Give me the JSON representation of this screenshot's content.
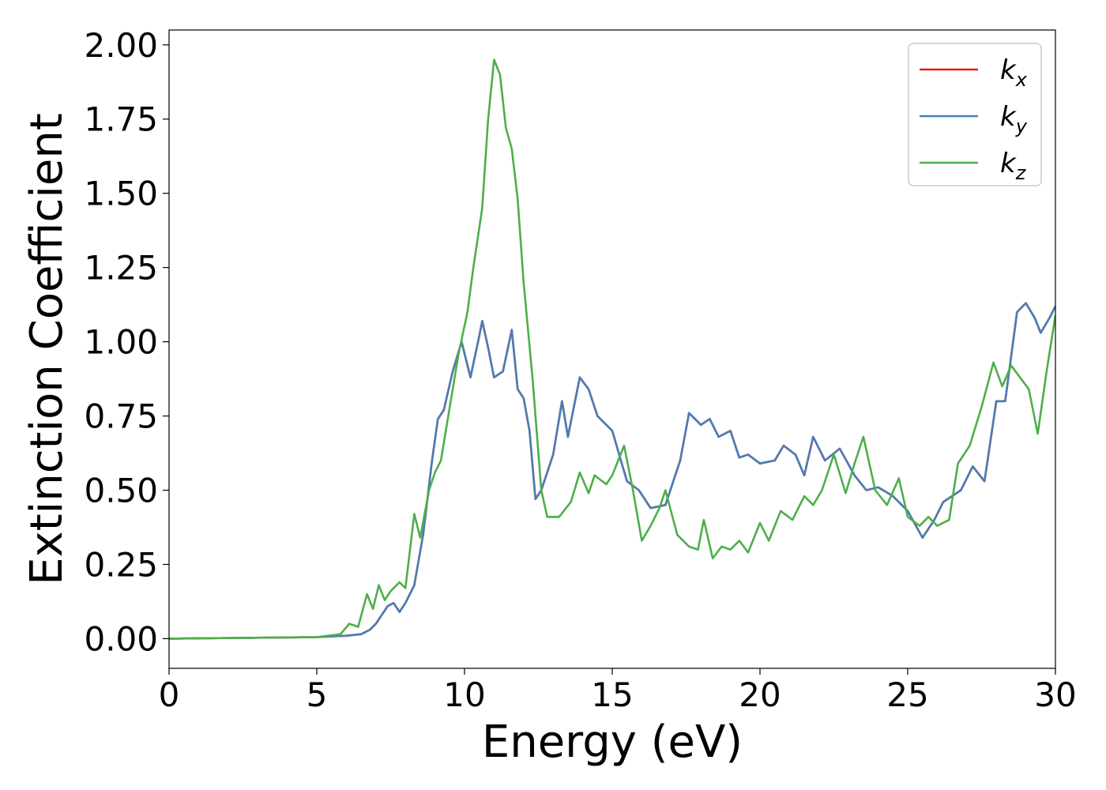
{
  "chart_data": {
    "type": "line",
    "title": "",
    "xlabel": "Energy (eV)",
    "ylabel": "Extinction Coefficient",
    "xlim": [
      0,
      30
    ],
    "ylim": [
      -0.1,
      2.05
    ],
    "xticks": [
      0,
      5,
      10,
      15,
      20,
      25,
      30
    ],
    "xtick_labels": [
      "0",
      "5",
      "10",
      "15",
      "20",
      "25",
      "30"
    ],
    "yticks": [
      0.0,
      0.25,
      0.5,
      0.75,
      1.0,
      1.25,
      1.5,
      1.75,
      2.0
    ],
    "ytick_labels": [
      "0.00",
      "0.25",
      "0.50",
      "0.75",
      "1.00",
      "1.25",
      "1.50",
      "1.75",
      "2.00"
    ],
    "grid": false,
    "legend_position": "top-right",
    "series": [
      {
        "name": "k_x",
        "label_base": "k",
        "label_sub": "x",
        "color": "#e41a1c",
        "points": [
          [
            0,
            0.0
          ],
          [
            5,
            0.005
          ],
          [
            6,
            0.01
          ],
          [
            6.5,
            0.015
          ],
          [
            6.8,
            0.03
          ],
          [
            7.0,
            0.05
          ],
          [
            7.2,
            0.08
          ],
          [
            7.4,
            0.11
          ],
          [
            7.6,
            0.12
          ],
          [
            7.8,
            0.09
          ],
          [
            8.0,
            0.12
          ],
          [
            8.3,
            0.18
          ],
          [
            8.6,
            0.35
          ],
          [
            8.9,
            0.6
          ],
          [
            9.1,
            0.74
          ],
          [
            9.3,
            0.77
          ],
          [
            9.6,
            0.9
          ],
          [
            9.9,
            1.0
          ],
          [
            10.2,
            0.88
          ],
          [
            10.5,
            1.02
          ],
          [
            10.6,
            1.07
          ],
          [
            10.8,
            0.98
          ],
          [
            11.0,
            0.88
          ],
          [
            11.3,
            0.9
          ],
          [
            11.6,
            1.04
          ],
          [
            11.8,
            0.84
          ],
          [
            12.0,
            0.81
          ],
          [
            12.2,
            0.7
          ],
          [
            12.4,
            0.47
          ],
          [
            12.6,
            0.5
          ],
          [
            13.0,
            0.62
          ],
          [
            13.3,
            0.8
          ],
          [
            13.5,
            0.68
          ],
          [
            13.7,
            0.78
          ],
          [
            13.9,
            0.88
          ],
          [
            14.2,
            0.84
          ],
          [
            14.5,
            0.75
          ],
          [
            15.0,
            0.7
          ],
          [
            15.5,
            0.53
          ],
          [
            15.9,
            0.5
          ],
          [
            16.3,
            0.44
          ],
          [
            16.8,
            0.45
          ],
          [
            17.3,
            0.6
          ],
          [
            17.6,
            0.76
          ],
          [
            18.0,
            0.72
          ],
          [
            18.3,
            0.74
          ],
          [
            18.6,
            0.68
          ],
          [
            19.0,
            0.7
          ],
          [
            19.3,
            0.61
          ],
          [
            19.6,
            0.62
          ],
          [
            20.0,
            0.59
          ],
          [
            20.5,
            0.6
          ],
          [
            20.8,
            0.65
          ],
          [
            21.2,
            0.62
          ],
          [
            21.5,
            0.55
          ],
          [
            21.8,
            0.68
          ],
          [
            22.2,
            0.6
          ],
          [
            22.7,
            0.64
          ],
          [
            23.2,
            0.55
          ],
          [
            23.6,
            0.5
          ],
          [
            24.0,
            0.51
          ],
          [
            24.5,
            0.48
          ],
          [
            25.0,
            0.43
          ],
          [
            25.5,
            0.34
          ],
          [
            25.9,
            0.4
          ],
          [
            26.2,
            0.46
          ],
          [
            26.8,
            0.5
          ],
          [
            27.2,
            0.58
          ],
          [
            27.6,
            0.53
          ],
          [
            28.0,
            0.8
          ],
          [
            28.3,
            0.8
          ],
          [
            28.7,
            1.1
          ],
          [
            29.0,
            1.13
          ],
          [
            29.3,
            1.08
          ],
          [
            29.5,
            1.03
          ],
          [
            29.8,
            1.08
          ],
          [
            30.0,
            1.12
          ]
        ]
      },
      {
        "name": "k_y",
        "label_base": "k",
        "label_sub": "y",
        "color": "#4a7db5",
        "points": [
          [
            0,
            0.0
          ],
          [
            5,
            0.005
          ],
          [
            6,
            0.01
          ],
          [
            6.5,
            0.015
          ],
          [
            6.8,
            0.03
          ],
          [
            7.0,
            0.05
          ],
          [
            7.2,
            0.08
          ],
          [
            7.4,
            0.11
          ],
          [
            7.6,
            0.12
          ],
          [
            7.8,
            0.09
          ],
          [
            8.0,
            0.12
          ],
          [
            8.3,
            0.18
          ],
          [
            8.6,
            0.35
          ],
          [
            8.9,
            0.6
          ],
          [
            9.1,
            0.74
          ],
          [
            9.3,
            0.77
          ],
          [
            9.6,
            0.9
          ],
          [
            9.9,
            1.0
          ],
          [
            10.2,
            0.88
          ],
          [
            10.5,
            1.02
          ],
          [
            10.6,
            1.07
          ],
          [
            10.8,
            0.98
          ],
          [
            11.0,
            0.88
          ],
          [
            11.3,
            0.9
          ],
          [
            11.6,
            1.04
          ],
          [
            11.8,
            0.84
          ],
          [
            12.0,
            0.81
          ],
          [
            12.2,
            0.7
          ],
          [
            12.4,
            0.47
          ],
          [
            12.6,
            0.5
          ],
          [
            13.0,
            0.62
          ],
          [
            13.3,
            0.8
          ],
          [
            13.5,
            0.68
          ],
          [
            13.7,
            0.78
          ],
          [
            13.9,
            0.88
          ],
          [
            14.2,
            0.84
          ],
          [
            14.5,
            0.75
          ],
          [
            15.0,
            0.7
          ],
          [
            15.5,
            0.53
          ],
          [
            15.9,
            0.5
          ],
          [
            16.3,
            0.44
          ],
          [
            16.8,
            0.45
          ],
          [
            17.3,
            0.6
          ],
          [
            17.6,
            0.76
          ],
          [
            18.0,
            0.72
          ],
          [
            18.3,
            0.74
          ],
          [
            18.6,
            0.68
          ],
          [
            19.0,
            0.7
          ],
          [
            19.3,
            0.61
          ],
          [
            19.6,
            0.62
          ],
          [
            20.0,
            0.59
          ],
          [
            20.5,
            0.6
          ],
          [
            20.8,
            0.65
          ],
          [
            21.2,
            0.62
          ],
          [
            21.5,
            0.55
          ],
          [
            21.8,
            0.68
          ],
          [
            22.2,
            0.6
          ],
          [
            22.7,
            0.64
          ],
          [
            23.2,
            0.55
          ],
          [
            23.6,
            0.5
          ],
          [
            24.0,
            0.51
          ],
          [
            24.5,
            0.48
          ],
          [
            25.0,
            0.43
          ],
          [
            25.5,
            0.34
          ],
          [
            25.9,
            0.4
          ],
          [
            26.2,
            0.46
          ],
          [
            26.8,
            0.5
          ],
          [
            27.2,
            0.58
          ],
          [
            27.6,
            0.53
          ],
          [
            28.0,
            0.8
          ],
          [
            28.3,
            0.8
          ],
          [
            28.7,
            1.1
          ],
          [
            29.0,
            1.13
          ],
          [
            29.3,
            1.08
          ],
          [
            29.5,
            1.03
          ],
          [
            29.8,
            1.08
          ],
          [
            30.0,
            1.12
          ]
        ]
      },
      {
        "name": "k_z",
        "label_base": "k",
        "label_sub": "z",
        "color": "#4daf4a",
        "points": [
          [
            0,
            0.0
          ],
          [
            5,
            0.005
          ],
          [
            5.8,
            0.015
          ],
          [
            6.1,
            0.05
          ],
          [
            6.4,
            0.04
          ],
          [
            6.7,
            0.15
          ],
          [
            6.9,
            0.1
          ],
          [
            7.1,
            0.18
          ],
          [
            7.3,
            0.13
          ],
          [
            7.5,
            0.16
          ],
          [
            7.8,
            0.19
          ],
          [
            8.0,
            0.17
          ],
          [
            8.3,
            0.42
          ],
          [
            8.5,
            0.34
          ],
          [
            8.8,
            0.5
          ],
          [
            9.0,
            0.56
          ],
          [
            9.2,
            0.6
          ],
          [
            9.5,
            0.78
          ],
          [
            9.8,
            0.96
          ],
          [
            10.1,
            1.1
          ],
          [
            10.3,
            1.25
          ],
          [
            10.6,
            1.45
          ],
          [
            10.8,
            1.75
          ],
          [
            11.0,
            1.95
          ],
          [
            11.2,
            1.9
          ],
          [
            11.4,
            1.72
          ],
          [
            11.6,
            1.65
          ],
          [
            11.8,
            1.48
          ],
          [
            12.0,
            1.2
          ],
          [
            12.3,
            0.88
          ],
          [
            12.6,
            0.5
          ],
          [
            12.8,
            0.41
          ],
          [
            13.2,
            0.41
          ],
          [
            13.6,
            0.46
          ],
          [
            13.9,
            0.56
          ],
          [
            14.2,
            0.49
          ],
          [
            14.4,
            0.55
          ],
          [
            14.8,
            0.52
          ],
          [
            15.0,
            0.55
          ],
          [
            15.4,
            0.65
          ],
          [
            15.7,
            0.5
          ],
          [
            16.0,
            0.33
          ],
          [
            16.3,
            0.38
          ],
          [
            16.6,
            0.44
          ],
          [
            16.8,
            0.5
          ],
          [
            17.2,
            0.35
          ],
          [
            17.6,
            0.31
          ],
          [
            17.9,
            0.3
          ],
          [
            18.1,
            0.4
          ],
          [
            18.4,
            0.27
          ],
          [
            18.7,
            0.31
          ],
          [
            19.0,
            0.3
          ],
          [
            19.3,
            0.33
          ],
          [
            19.6,
            0.29
          ],
          [
            20.0,
            0.39
          ],
          [
            20.3,
            0.33
          ],
          [
            20.7,
            0.43
          ],
          [
            21.1,
            0.4
          ],
          [
            21.5,
            0.48
          ],
          [
            21.8,
            0.45
          ],
          [
            22.1,
            0.5
          ],
          [
            22.5,
            0.62
          ],
          [
            22.9,
            0.49
          ],
          [
            23.2,
            0.59
          ],
          [
            23.5,
            0.68
          ],
          [
            23.9,
            0.5
          ],
          [
            24.3,
            0.45
          ],
          [
            24.7,
            0.54
          ],
          [
            25.0,
            0.41
          ],
          [
            25.4,
            0.38
          ],
          [
            25.7,
            0.41
          ],
          [
            26.0,
            0.38
          ],
          [
            26.4,
            0.4
          ],
          [
            26.7,
            0.59
          ],
          [
            27.1,
            0.65
          ],
          [
            27.5,
            0.78
          ],
          [
            27.9,
            0.93
          ],
          [
            28.2,
            0.85
          ],
          [
            28.5,
            0.92
          ],
          [
            28.8,
            0.88
          ],
          [
            29.1,
            0.84
          ],
          [
            29.4,
            0.69
          ],
          [
            29.7,
            0.9
          ],
          [
            30.0,
            1.09
          ]
        ]
      }
    ]
  }
}
